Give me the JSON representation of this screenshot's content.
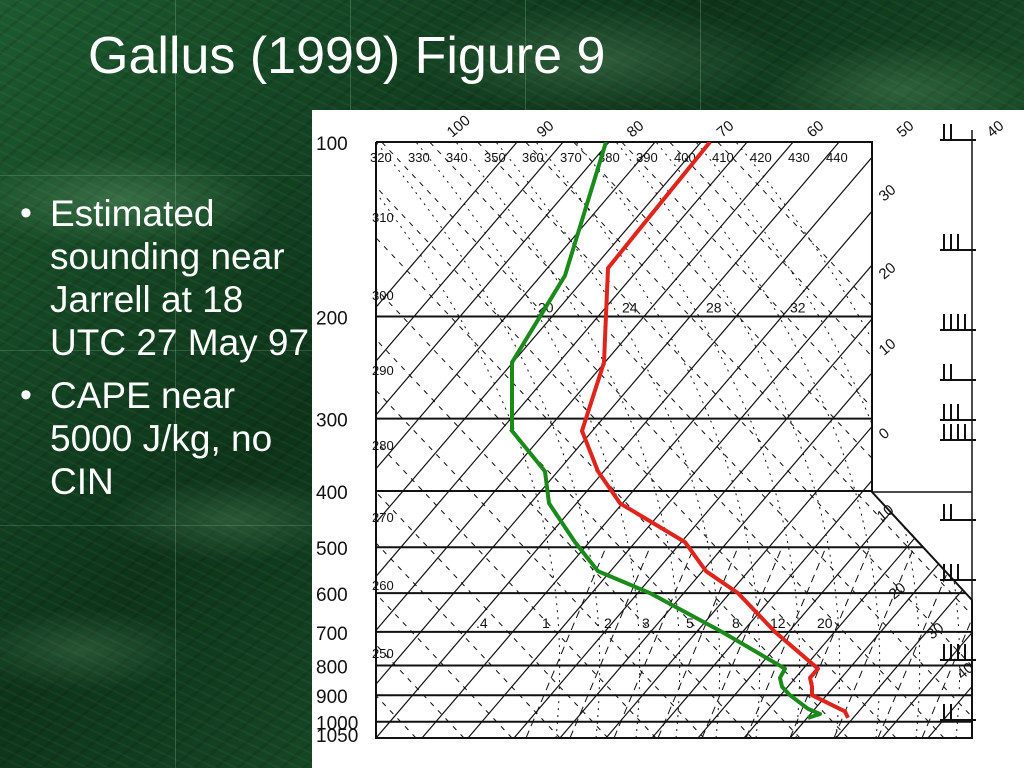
{
  "slide": {
    "title": "Gallus (1999) Figure 9",
    "bullets": [
      "Estimated sounding near Jarrell at 18 UTC 27 May 97",
      "CAPE near 5000 J/kg, no CIN"
    ]
  },
  "colors": {
    "temperature_line": "#e0241b",
    "dewpoint_line": "#1a8a1a",
    "chart_ink": "#111111",
    "slide_text": "#ffffff"
  },
  "chart_data": {
    "type": "line",
    "title": "",
    "xlabel": "",
    "ylabel": "",
    "pressure_ticks": [
      "100",
      "200",
      "300",
      "400",
      "500",
      "600",
      "700",
      "800",
      "900",
      "1000",
      "1050"
    ],
    "theta_e_labels": [
      "320",
      "330",
      "340",
      "350",
      "360",
      "370",
      "380",
      "390",
      "400",
      "410",
      "420",
      "430",
      "440"
    ],
    "theta_labels": [
      "310",
      "300",
      "290",
      "280",
      "270",
      "260",
      "250"
    ],
    "wetbulb_labels_top": [
      "100",
      "90",
      "80",
      "70",
      "60",
      "50",
      "40"
    ],
    "wetbulb_labels_right": [
      "30",
      "20",
      "10",
      "0",
      "10",
      "20",
      "30",
      "40"
    ],
    "isotherm_labels_200": [
      "20",
      "24",
      "28",
      "32"
    ],
    "mixing_ratio_labels_700": [
      ".4",
      "1",
      "2",
      "3",
      "5",
      "8",
      "12",
      "20"
    ],
    "series": [
      {
        "role": "temperature",
        "points": [
          [
            100,
            710
          ],
          [
            165,
            608
          ],
          [
            240,
            604
          ],
          [
            315,
            582
          ],
          [
            370,
            598
          ],
          [
            420,
            620
          ],
          [
            490,
            685
          ],
          [
            550,
            706
          ],
          [
            600,
            738
          ],
          [
            700,
            775
          ],
          [
            810,
            818
          ],
          [
            840,
            810
          ],
          [
            870,
            812
          ],
          [
            900,
            812
          ],
          [
            960,
            845
          ],
          [
            985,
            848
          ]
        ]
      },
      {
        "role": "dewpoint",
        "points": [
          [
            100,
            606
          ],
          [
            170,
            565
          ],
          [
            240,
            512
          ],
          [
            315,
            512
          ],
          [
            370,
            545
          ],
          [
            420,
            549
          ],
          [
            490,
            575
          ],
          [
            550,
            598
          ],
          [
            600,
            650
          ],
          [
            700,
            722
          ],
          [
            810,
            785
          ],
          [
            840,
            780
          ],
          [
            870,
            782
          ],
          [
            900,
            790
          ],
          [
            950,
            808
          ],
          [
            970,
            820
          ],
          [
            985,
            808
          ]
        ]
      }
    ]
  }
}
